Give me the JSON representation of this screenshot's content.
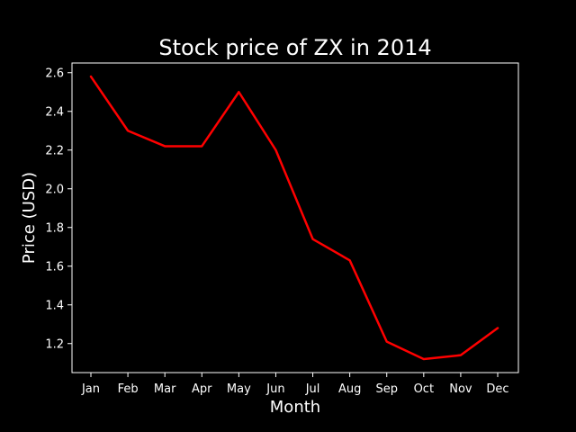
{
  "chart_data": {
    "type": "line",
    "title": "Stock price of ZX in 2014",
    "xlabel": "Month",
    "ylabel": "Price (USD)",
    "categories": [
      "Jan",
      "Feb",
      "Mar",
      "Apr",
      "May",
      "Jun",
      "Jul",
      "Aug",
      "Sep",
      "Oct",
      "Nov",
      "Dec"
    ],
    "series": [
      {
        "values": [
          2.58,
          2.3,
          2.22,
          2.22,
          2.5,
          2.2,
          1.74,
          1.63,
          1.21,
          1.12,
          1.14,
          1.28
        ],
        "color": "#ff0000"
      }
    ],
    "ylim": [
      1.05,
      2.65
    ],
    "yticks": [
      "1.2",
      "1.4",
      "1.6",
      "1.8",
      "2.0",
      "2.2",
      "2.4",
      "2.6"
    ],
    "background": "#000000",
    "foreground": "#ffffff",
    "grid": false,
    "legend": "none"
  }
}
